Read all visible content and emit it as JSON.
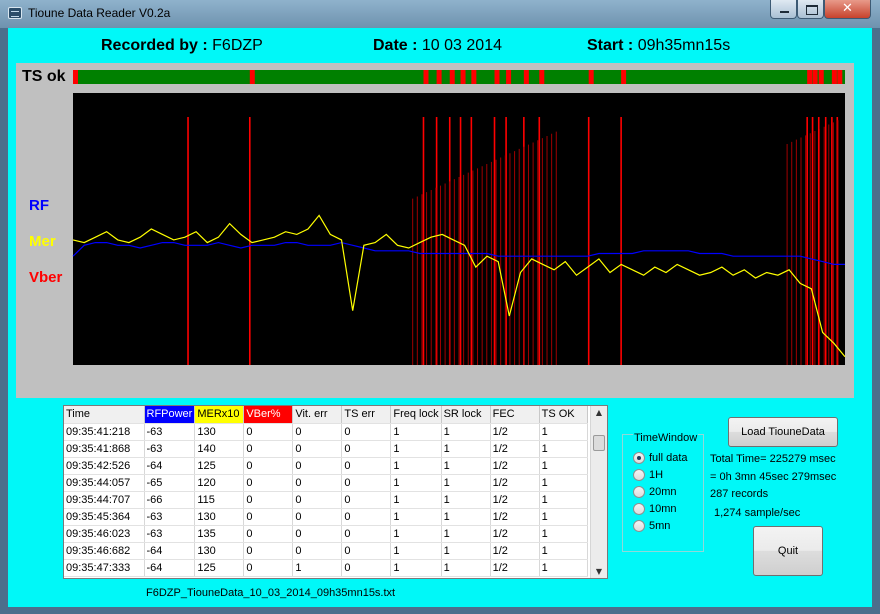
{
  "window": {
    "title": "Tioune Data Reader V0.2a",
    "close_glyph": "✕"
  },
  "header": {
    "recorded_by_label": "Recorded by :",
    "recorded_by_value": "F6DZP",
    "date_label": "Date :",
    "date_value": "10 03 2014",
    "start_label": "Start :",
    "start_value": "09h35mn15s"
  },
  "chart_panel": {
    "ts_ok_label": "TS ok",
    "legend": [
      {
        "label": "RF",
        "color": "#0000ff"
      },
      {
        "label": "Mer",
        "color": "#ffff00"
      },
      {
        "label": "Vber",
        "color": "#ff0000"
      }
    ]
  },
  "chart_data": {
    "type": "line",
    "ts_ok_strip": {
      "ok_color": "#008000",
      "error_color": "#ff0000",
      "error_positions": [
        0.0,
        0.229,
        0.454,
        0.471,
        0.488,
        0.502,
        0.516,
        0.546,
        0.561,
        0.584,
        0.604,
        0.668,
        0.71,
        0.951,
        0.958,
        0.966,
        0.983,
        0.99
      ]
    },
    "plot": {
      "background": "#000000",
      "series": [
        {
          "key": "rf",
          "color": "#0000ff"
        },
        {
          "key": "mer",
          "color": "#ffff00"
        },
        {
          "key": "vber",
          "color": "#ff0000"
        }
      ],
      "rf_level": [
        0.4,
        0.44,
        0.45,
        0.45,
        0.44,
        0.44,
        0.43,
        0.44,
        0.45,
        0.45,
        0.44,
        0.44,
        0.44,
        0.45,
        0.44,
        0.43,
        0.44,
        0.44,
        0.44,
        0.45,
        0.45,
        0.44,
        0.44,
        0.44,
        0.45,
        0.44,
        0.43,
        0.42,
        0.42,
        0.42,
        0.42,
        0.41,
        0.41,
        0.41,
        0.41,
        0.41,
        0.41,
        0.41,
        0.4,
        0.4,
        0.4,
        0.4,
        0.4,
        0.4,
        0.4,
        0.4,
        0.4,
        0.41,
        0.41,
        0.41,
        0.41,
        0.42,
        0.42,
        0.42,
        0.42,
        0.42,
        0.41,
        0.41,
        0.41,
        0.4,
        0.4,
        0.4,
        0.4,
        0.4,
        0.4,
        0.4,
        0.39,
        0.38,
        0.37,
        0.37
      ],
      "mer_level": [
        0.46,
        0.45,
        0.47,
        0.49,
        0.46,
        0.45,
        0.47,
        0.5,
        0.48,
        0.46,
        0.47,
        0.49,
        0.45,
        0.47,
        0.52,
        0.48,
        0.45,
        0.46,
        0.47,
        0.49,
        0.48,
        0.5,
        0.55,
        0.48,
        0.46,
        0.2,
        0.44,
        0.45,
        0.48,
        0.44,
        0.43,
        0.45,
        0.47,
        0.48,
        0.46,
        0.44,
        0.36,
        0.4,
        0.38,
        0.18,
        0.34,
        0.39,
        0.37,
        0.35,
        0.38,
        0.33,
        0.36,
        0.39,
        0.34,
        0.37,
        0.35,
        0.33,
        0.36,
        0.34,
        0.37,
        0.35,
        0.33,
        0.34,
        0.36,
        0.33,
        0.35,
        0.32,
        0.34,
        0.33,
        0.35,
        0.3,
        0.28,
        0.12,
        0.08,
        0.03
      ],
      "vber_positions": [
        0.149,
        0.229,
        0.454,
        0.471,
        0.488,
        0.502,
        0.516,
        0.546,
        0.561,
        0.584,
        0.604,
        0.668,
        0.71,
        0.951,
        0.958,
        0.966,
        0.975,
        0.983,
        0.99
      ],
      "vber_dense_ranges": [
        [
          0.44,
          0.63
        ],
        [
          0.925,
          0.995
        ]
      ]
    }
  },
  "grid": {
    "columns": [
      {
        "label": "Time",
        "bg": "#f0f0f0",
        "color": "#000000"
      },
      {
        "label": "RFPower",
        "bg": "#0000ff",
        "color": "#ffffff"
      },
      {
        "label": "MERx10",
        "bg": "#ffff00",
        "color": "#000000"
      },
      {
        "label": "VBer%",
        "bg": "#ff0000",
        "color": "#ffffff"
      },
      {
        "label": "Vit. err",
        "bg": "#f0f0f0",
        "color": "#000000"
      },
      {
        "label": "TS err",
        "bg": "#f0f0f0",
        "color": "#000000"
      },
      {
        "label": "Freq lock",
        "bg": "#f0f0f0",
        "color": "#000000"
      },
      {
        "label": "SR lock",
        "bg": "#f0f0f0",
        "color": "#000000"
      },
      {
        "label": "FEC",
        "bg": "#f0f0f0",
        "color": "#000000"
      },
      {
        "label": "TS OK",
        "bg": "#f0f0f0",
        "color": "#000000"
      }
    ],
    "rows": [
      [
        "09:35:41:218",
        "-63",
        "130",
        "0",
        "0",
        "0",
        "1",
        "1",
        "1/2",
        "1"
      ],
      [
        "09:35:41:868",
        "-63",
        "140",
        "0",
        "0",
        "0",
        "1",
        "1",
        "1/2",
        "1"
      ],
      [
        "09:35:42:526",
        "-64",
        "125",
        "0",
        "0",
        "0",
        "1",
        "1",
        "1/2",
        "1"
      ],
      [
        "09:35:44:057",
        "-65",
        "120",
        "0",
        "0",
        "0",
        "1",
        "1",
        "1/2",
        "1"
      ],
      [
        "09:35:44:707",
        "-66",
        "115",
        "0",
        "0",
        "0",
        "1",
        "1",
        "1/2",
        "1"
      ],
      [
        "09:35:45:364",
        "-63",
        "130",
        "0",
        "0",
        "0",
        "1",
        "1",
        "1/2",
        "1"
      ],
      [
        "09:35:46:023",
        "-63",
        "135",
        "0",
        "0",
        "0",
        "1",
        "1",
        "1/2",
        "1"
      ],
      [
        "09:35:46:682",
        "-64",
        "130",
        "0",
        "0",
        "0",
        "1",
        "1",
        "1/2",
        "1"
      ],
      [
        "09:35:47:333",
        "-64",
        "125",
        "0",
        "1",
        "0",
        "1",
        "1",
        "1/2",
        "1"
      ]
    ]
  },
  "file_name": "F6DZP_TiouneData_10_03_2014_09h35mn15s.txt",
  "time_window": {
    "title": "TimeWindow",
    "options": [
      "full data",
      "1H",
      "20mn",
      "10mn",
      "5mn"
    ],
    "selected": "full data"
  },
  "buttons": {
    "load": "Load TiouneData",
    "quit": "Quit"
  },
  "info": {
    "total_time": "Total Time= 225279 msec",
    "duration": "= 0h 3mn 45sec 279msec",
    "records": "287 records",
    "rate": "1,274 sample/sec"
  }
}
